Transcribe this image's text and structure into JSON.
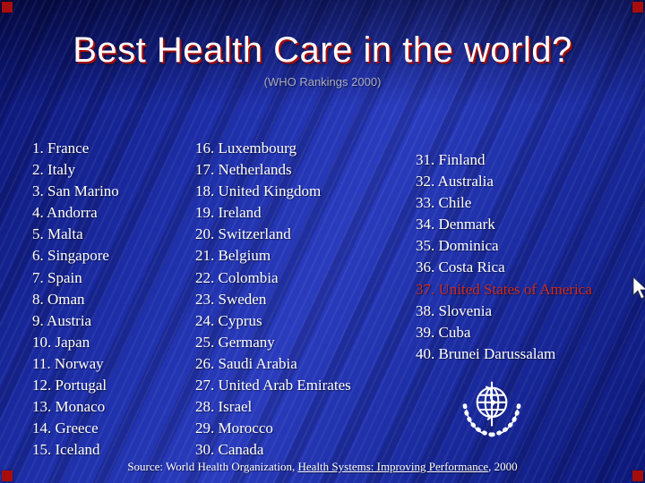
{
  "slide": {
    "title": "Best Health Care in the world?",
    "subtitle": "(WHO Rankings 2000)"
  },
  "rankings": {
    "column1": [
      "1. France",
      "2. Italy",
      "3. San Marino",
      "4. Andorra",
      "5. Malta",
      "6. Singapore",
      "7. Spain",
      "8. Oman",
      "9. Austria",
      "10. Japan",
      "11. Norway",
      "12. Portugal",
      "13. Monaco",
      "14. Greece",
      "15. Iceland"
    ],
    "column2": [
      "16. Luxembourg",
      "17. Netherlands",
      "18. United Kingdom",
      "19. Ireland",
      "20. Switzerland",
      "21. Belgium",
      "22. Colombia",
      "23. Sweden",
      "24. Cyprus",
      "25. Germany",
      "26. Saudi Arabia",
      "27. United Arab Emirates",
      "28. Israel",
      "29. Morocco",
      "30. Canada"
    ],
    "column3": [
      "31. Finland",
      "32. Australia",
      "33. Chile",
      "34. Denmark",
      "35. Dominica",
      "36. Costa Rica",
      "37. United States of America",
      "38. Slovenia",
      "39. Cuba",
      "40. Brunei Darussalam"
    ],
    "highlighted_entry": "37. United States of America",
    "highlight_color": "#cf2a1b"
  },
  "footer": {
    "prefix": "Source: World Health Organization, ",
    "underlined": "Health Systems: Improving Performance",
    "suffix": ", 2000"
  },
  "colors": {
    "background_blue": "#2a3cbe",
    "corner_red": "#a80d0d",
    "title_shadow_red": "#a50c0c",
    "text_white": "#ffffff"
  },
  "icons": {
    "who_logo": "who-emblem",
    "cursor": "mouse-pointer"
  }
}
